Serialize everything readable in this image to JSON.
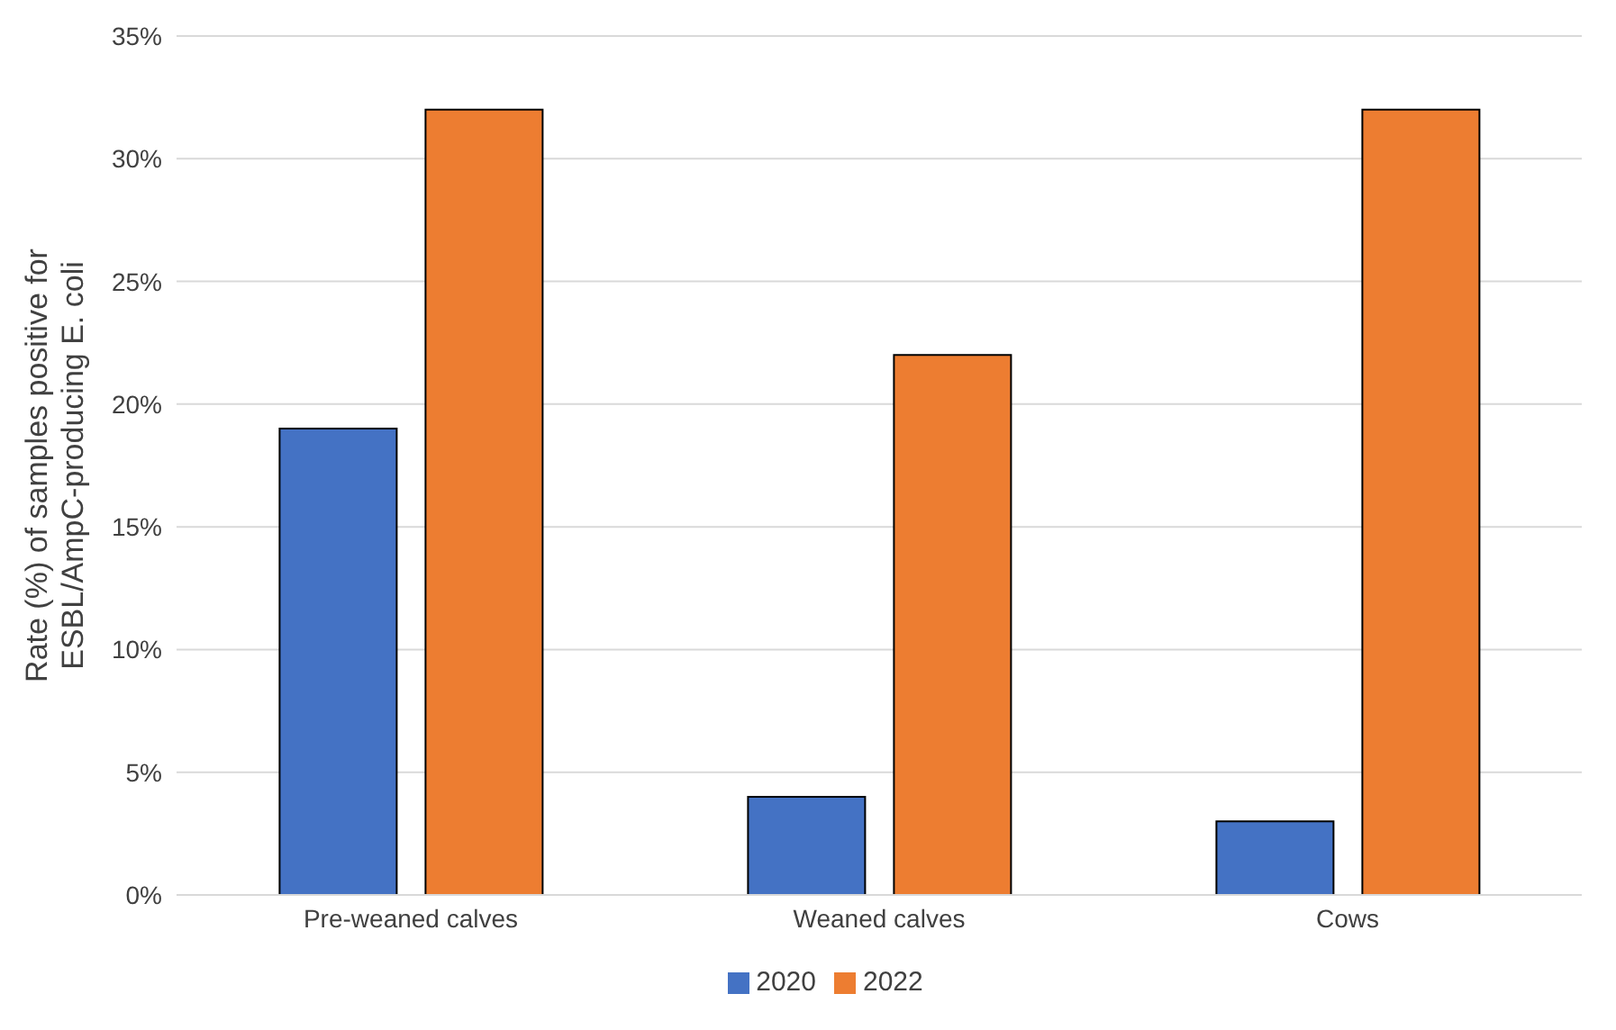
{
  "chart_data": {
    "type": "bar",
    "ylabel": "Rate (%) of samples positive for ESBL/AmpC-producing E. coli",
    "categories": [
      "Pre-weaned calves",
      "Weaned calves",
      "Cows"
    ],
    "series": [
      {
        "name": "2020",
        "color": "#4472c4",
        "values": [
          19,
          4,
          3
        ]
      },
      {
        "name": "2022",
        "color": "#ed7d31",
        "values": [
          32,
          22,
          32
        ]
      }
    ],
    "ylim": [
      0,
      35
    ],
    "yticks": [
      {
        "value": 0,
        "label": "0%"
      },
      {
        "value": 5,
        "label": "5%"
      },
      {
        "value": 10,
        "label": "10%"
      },
      {
        "value": 15,
        "label": "15%"
      },
      {
        "value": 20,
        "label": "20%"
      },
      {
        "value": 25,
        "label": "25%"
      },
      {
        "value": 30,
        "label": "30%"
      },
      {
        "value": 35,
        "label": "35%"
      }
    ],
    "grid": "y",
    "legend": "bottom"
  }
}
